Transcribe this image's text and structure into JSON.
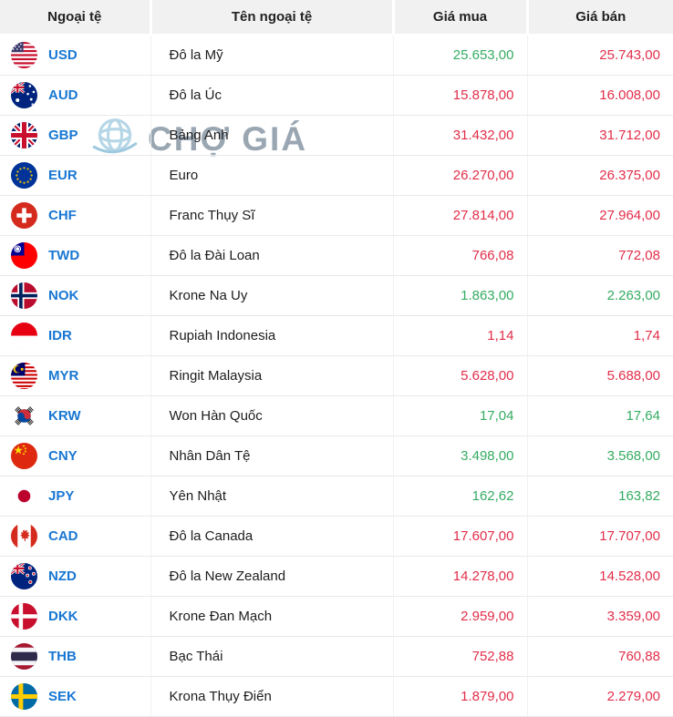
{
  "colors": {
    "up": "#35ab62",
    "down": "#e12e4a",
    "code_blue": "#1877d2"
  },
  "watermark": {
    "text": "CHỢ GIÁ"
  },
  "table": {
    "headers": [
      "Ngoại tệ",
      "Tên ngoại tệ",
      "Giá mua",
      "Giá bán"
    ],
    "rows": [
      {
        "code": "USD",
        "flag": "us-flag",
        "name": "Đô la Mỹ",
        "buy": "25.653,00",
        "buy_trend": "up",
        "sell": "25.743,00",
        "sell_trend": "down"
      },
      {
        "code": "AUD",
        "flag": "au-flag",
        "name": "Đô la Úc",
        "buy": "15.878,00",
        "buy_trend": "down",
        "sell": "16.008,00",
        "sell_trend": "down"
      },
      {
        "code": "GBP",
        "flag": "gb-flag",
        "name": "Bảng Anh",
        "buy": "31.432,00",
        "buy_trend": "down",
        "sell": "31.712,00",
        "sell_trend": "down"
      },
      {
        "code": "EUR",
        "flag": "eu-flag",
        "name": "Euro",
        "buy": "26.270,00",
        "buy_trend": "down",
        "sell": "26.375,00",
        "sell_trend": "down"
      },
      {
        "code": "CHF",
        "flag": "ch-flag",
        "name": "Franc Thụy Sĩ",
        "buy": "27.814,00",
        "buy_trend": "down",
        "sell": "27.964,00",
        "sell_trend": "down"
      },
      {
        "code": "TWD",
        "flag": "tw-flag",
        "name": "Đô la Đài Loan",
        "buy": "766,08",
        "buy_trend": "down",
        "sell": "772,08",
        "sell_trend": "down"
      },
      {
        "code": "NOK",
        "flag": "no-flag",
        "name": "Krone Na Uy",
        "buy": "1.863,00",
        "buy_trend": "up",
        "sell": "2.263,00",
        "sell_trend": "up"
      },
      {
        "code": "IDR",
        "flag": "id-flag",
        "name": "Rupiah Indonesia",
        "buy": "1,14",
        "buy_trend": "down",
        "sell": "1,74",
        "sell_trend": "down"
      },
      {
        "code": "MYR",
        "flag": "my-flag",
        "name": "Ringit Malaysia",
        "buy": "5.628,00",
        "buy_trend": "down",
        "sell": "5.688,00",
        "sell_trend": "down"
      },
      {
        "code": "KRW",
        "flag": "kr-flag",
        "name": "Won Hàn Quốc",
        "buy": "17,04",
        "buy_trend": "up",
        "sell": "17,64",
        "sell_trend": "up"
      },
      {
        "code": "CNY",
        "flag": "cn-flag",
        "name": "Nhân Dân Tệ",
        "buy": "3.498,00",
        "buy_trend": "up",
        "sell": "3.568,00",
        "sell_trend": "up"
      },
      {
        "code": "JPY",
        "flag": "jp-flag",
        "name": "Yên Nhật",
        "buy": "162,62",
        "buy_trend": "up",
        "sell": "163,82",
        "sell_trend": "up"
      },
      {
        "code": "CAD",
        "flag": "ca-flag",
        "name": "Đô la Canada",
        "buy": "17.607,00",
        "buy_trend": "down",
        "sell": "17.707,00",
        "sell_trend": "down"
      },
      {
        "code": "NZD",
        "flag": "nz-flag",
        "name": "Đô la New Zealand",
        "buy": "14.278,00",
        "buy_trend": "down",
        "sell": "14.528,00",
        "sell_trend": "down"
      },
      {
        "code": "DKK",
        "flag": "dk-flag",
        "name": "Krone Đan Mạch",
        "buy": "2.959,00",
        "buy_trend": "down",
        "sell": "3.359,00",
        "sell_trend": "down"
      },
      {
        "code": "THB",
        "flag": "th-flag",
        "name": "Bạc Thái",
        "buy": "752,88",
        "buy_trend": "down",
        "sell": "760,88",
        "sell_trend": "down"
      },
      {
        "code": "SEK",
        "flag": "se-flag",
        "name": "Krona Thụy Điển",
        "buy": "1.879,00",
        "buy_trend": "down",
        "sell": "2.279,00",
        "sell_trend": "down"
      }
    ]
  }
}
